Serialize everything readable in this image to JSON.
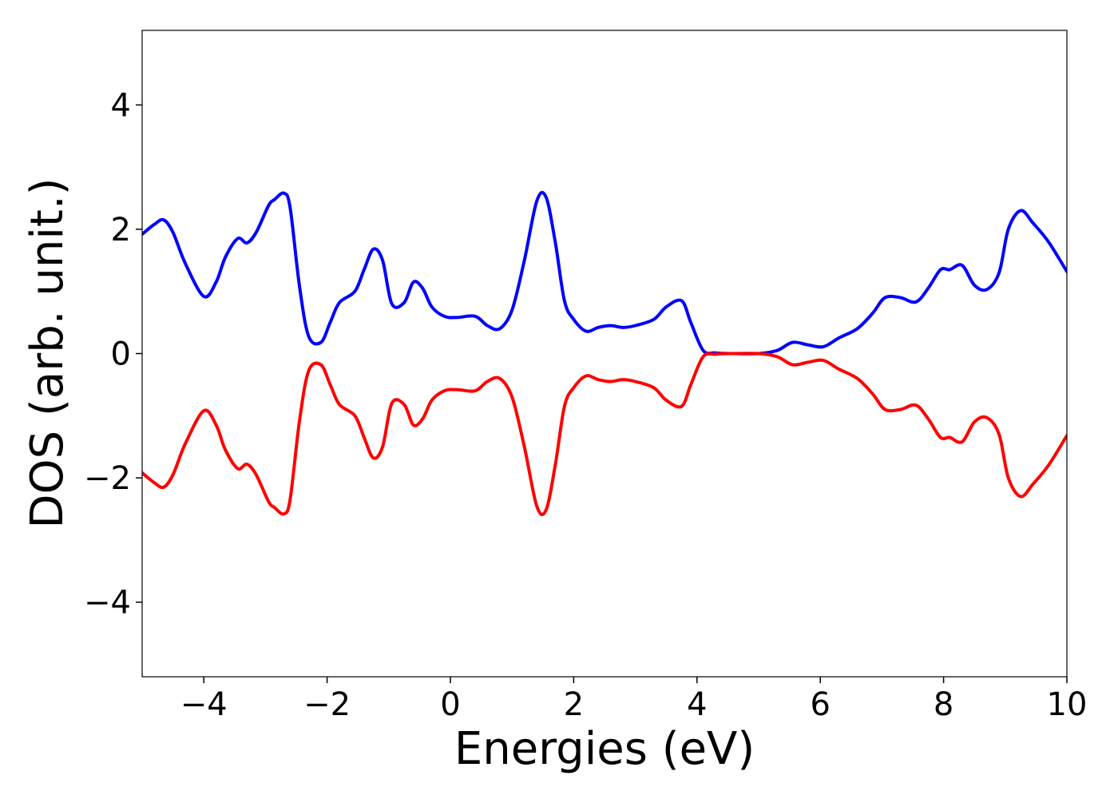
{
  "chart_data": {
    "type": "line",
    "xlabel": "Energies (eV)",
    "ylabel": "DOS (arb. unit.)",
    "xlim": [
      -5,
      10
    ],
    "ylim": [
      -5.2,
      5.2
    ],
    "xticks": [
      -4,
      -2,
      0,
      2,
      4,
      6,
      8,
      10
    ],
    "xtick_labels": [
      "−4",
      "−2",
      "0",
      "2",
      "4",
      "6",
      "8",
      "10"
    ],
    "yticks": [
      -4,
      -2,
      0,
      2,
      4
    ],
    "ytick_labels": [
      "−4",
      "−2",
      "0",
      "2",
      "4"
    ],
    "grid": false,
    "x": [
      -5.0,
      -4.8,
      -4.65,
      -4.5,
      -4.3,
      -4.0,
      -3.8,
      -3.65,
      -3.45,
      -3.3,
      -3.15,
      -2.95,
      -2.85,
      -2.7,
      -2.6,
      -2.45,
      -2.3,
      -2.1,
      -1.95,
      -1.8,
      -1.55,
      -1.4,
      -1.25,
      -1.1,
      -0.95,
      -0.75,
      -0.6,
      -0.45,
      -0.3,
      -0.1,
      0.1,
      0.4,
      0.6,
      0.8,
      1.0,
      1.2,
      1.4,
      1.55,
      1.7,
      1.85,
      2.0,
      2.2,
      2.4,
      2.6,
      2.8,
      3.0,
      3.3,
      3.5,
      3.75,
      3.9,
      4.1,
      4.3,
      4.6,
      5.0,
      5.3,
      5.55,
      5.8,
      6.05,
      6.3,
      6.6,
      6.85,
      7.05,
      7.3,
      7.55,
      7.75,
      7.95,
      8.1,
      8.3,
      8.5,
      8.7,
      8.9,
      9.05,
      9.25,
      9.45,
      9.7,
      10.0
    ],
    "series": [
      {
        "color": "#0000ff",
        "values": [
          1.92,
          2.08,
          2.15,
          1.95,
          1.45,
          0.92,
          1.15,
          1.55,
          1.85,
          1.78,
          1.95,
          2.38,
          2.48,
          2.58,
          2.35,
          1.1,
          0.28,
          0.18,
          0.5,
          0.82,
          1.0,
          1.35,
          1.68,
          1.5,
          0.8,
          0.82,
          1.15,
          1.05,
          0.75,
          0.6,
          0.58,
          0.6,
          0.45,
          0.4,
          0.7,
          1.5,
          2.45,
          2.52,
          1.8,
          0.85,
          0.55,
          0.36,
          0.42,
          0.45,
          0.42,
          0.45,
          0.55,
          0.75,
          0.85,
          0.5,
          0.05,
          0.01,
          0.0,
          0.0,
          0.05,
          0.18,
          0.14,
          0.11,
          0.25,
          0.4,
          0.65,
          0.9,
          0.9,
          0.83,
          1.05,
          1.35,
          1.35,
          1.42,
          1.1,
          1.03,
          1.3,
          2.0,
          2.3,
          2.1,
          1.8,
          1.32
        ]
      },
      {
        "color": "#ff0000",
        "values": [
          -1.92,
          -2.08,
          -2.15,
          -1.95,
          -1.45,
          -0.92,
          -1.15,
          -1.55,
          -1.85,
          -1.78,
          -1.95,
          -2.38,
          -2.48,
          -2.58,
          -2.35,
          -1.1,
          -0.28,
          -0.18,
          -0.5,
          -0.82,
          -1.0,
          -1.35,
          -1.68,
          -1.5,
          -0.8,
          -0.82,
          -1.15,
          -1.05,
          -0.75,
          -0.6,
          -0.58,
          -0.6,
          -0.45,
          -0.4,
          -0.7,
          -1.5,
          -2.45,
          -2.52,
          -1.8,
          -0.85,
          -0.55,
          -0.36,
          -0.42,
          -0.45,
          -0.42,
          -0.45,
          -0.55,
          -0.75,
          -0.85,
          -0.5,
          -0.05,
          -0.01,
          0.0,
          0.0,
          -0.05,
          -0.18,
          -0.14,
          -0.11,
          -0.25,
          -0.4,
          -0.65,
          -0.9,
          -0.9,
          -0.83,
          -1.05,
          -1.35,
          -1.35,
          -1.42,
          -1.1,
          -1.03,
          -1.3,
          -2.0,
          -2.3,
          -2.1,
          -1.8,
          -1.32
        ]
      }
    ]
  }
}
